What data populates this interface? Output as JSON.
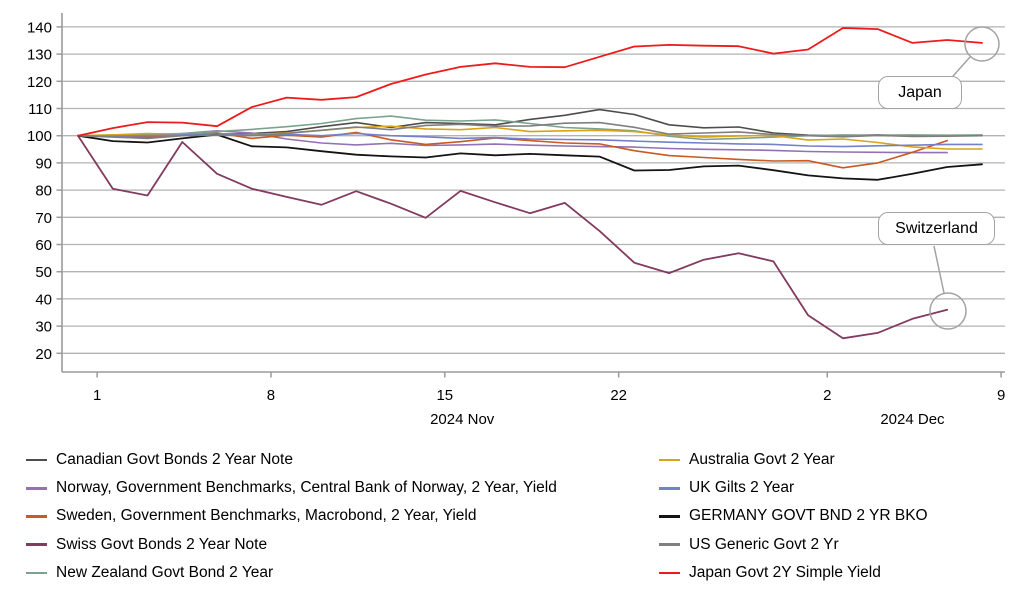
{
  "chart_data": {
    "type": "line",
    "title": "",
    "description": "2-year government bond yields, indexed to 100, business days Oct 31 - Dec 6 2024",
    "grid": true,
    "y_axis": {
      "min": 20,
      "max": 140,
      "step": 10,
      "tick_labels": [
        "20",
        "30",
        "40",
        "50",
        "60",
        "70",
        "80",
        "90",
        "100",
        "110",
        "120",
        "130",
        "140"
      ]
    },
    "x_axis": {
      "ticks": [
        {
          "label": "1",
          "i": 0.55
        },
        {
          "label": "8",
          "i": 5.55
        },
        {
          "label": "15",
          "i": 10.55
        },
        {
          "label": "22",
          "i": 15.55
        },
        {
          "label": "2",
          "i": 21.55
        },
        {
          "label": "9",
          "i": 26.55
        }
      ],
      "month_labels": [
        {
          "label": "2024 Nov",
          "i": 11.05
        },
        {
          "label": "2024 Dec",
          "i": 24.0
        }
      ]
    },
    "series": [
      {
        "key": "canada",
        "name": "Canadian Govt Bonds 2 Year Note",
        "color": "#4d4d4d",
        "width": 1.6,
        "legend_column": "left",
        "values": [
          100,
          100,
          99.2,
          100.2,
          100.5,
          100.8,
          101.5,
          103.3,
          104.8,
          103,
          104.8,
          104.5,
          104,
          106,
          107.5,
          109.6,
          107.8,
          104,
          102.9,
          103.2,
          101,
          100.2,
          100,
          100.3,
          99.9,
          100,
          100.2
        ]
      },
      {
        "key": "norway",
        "name": "Norway, Government Benchmarks, Central Bank of Norway, 2 Year, Yield",
        "color": "#9272b4",
        "width": 1.6,
        "legend_column": "left",
        "values": [
          100,
          100.2,
          100,
          100.8,
          101.8,
          101,
          98.8,
          97.3,
          96.6,
          97.2,
          96.4,
          96.6,
          96.9,
          96.5,
          96.2,
          96,
          95.8,
          95.3,
          95,
          94.8,
          94.6,
          94.2,
          94,
          93.9,
          93.8,
          93.8
        ]
      },
      {
        "key": "sweden",
        "name": "Sweden, Government Benchmarks, Macrobond, 2 Year, Yield",
        "color": "#c85a22",
        "width": 1.6,
        "legend_column": "left",
        "values": [
          100,
          99.8,
          99.5,
          100.2,
          101,
          99,
          100.2,
          99.5,
          101.2,
          98.5,
          96.8,
          97.8,
          99.2,
          98.2,
          97.3,
          97,
          94.5,
          92.7,
          92,
          91.3,
          90.7,
          90.8,
          88.2,
          90,
          93.9,
          98.2
        ]
      },
      {
        "key": "swiss",
        "name": "Swiss Govt Bonds 2 Year Note",
        "color": "#833a60",
        "width": 1.8,
        "legend_column": "left",
        "values": [
          100,
          80.5,
          78,
          97.7,
          86,
          80.5,
          77.5,
          74.6,
          79.6,
          75,
          69.8,
          79.7,
          75.5,
          71.5,
          75.3,
          65,
          53.3,
          49.5,
          54.4,
          56.8,
          53.8,
          34,
          25.5,
          27.5,
          32.7,
          36
        ]
      },
      {
        "key": "new_zealand",
        "name": "New Zealand Govt Bond 2 Year",
        "color": "#7aa28e",
        "width": 1.6,
        "legend_column": "left",
        "values": [
          100,
          100.3,
          100.5,
          100.8,
          101.5,
          102.3,
          103.3,
          104.5,
          106.3,
          107.2,
          105.7,
          105.4,
          105.8,
          104.5,
          103,
          102.5,
          101.8,
          99.8,
          98.6,
          99,
          99.5,
          100,
          100.3,
          100.2,
          100.3,
          100.2,
          100.3
        ]
      },
      {
        "key": "australia",
        "name": "Australia Govt 2 Year",
        "color": "#d9a318",
        "width": 1.6,
        "legend_column": "right",
        "values": [
          100,
          100.3,
          100.8,
          100.5,
          100.6,
          100.4,
          101,
          102,
          103,
          103.5,
          102.5,
          102.2,
          103,
          101.5,
          101.8,
          102,
          101.5,
          100.3,
          99.5,
          99.9,
          100.1,
          98.4,
          98.8,
          97.5,
          95.9,
          95.1,
          95.1
        ]
      },
      {
        "key": "uk",
        "name": "UK Gilts 2 Year",
        "color": "#7480c9",
        "width": 1.6,
        "legend_column": "right",
        "values": [
          100,
          99.8,
          100,
          100.3,
          100.8,
          100.2,
          100.5,
          100,
          100.8,
          100,
          99.6,
          99,
          99.3,
          98.8,
          98.6,
          98.5,
          98,
          97.6,
          97.3,
          97,
          96.8,
          96.2,
          96,
          96.3,
          96.5,
          96.8,
          96.8
        ]
      },
      {
        "key": "germany",
        "name": "GERMANY GOVT BND 2 YR BKO",
        "color": "#141414",
        "width": 1.8,
        "legend_column": "right",
        "values": [
          100,
          98,
          97.5,
          99,
          100.4,
          96.1,
          95.7,
          94.3,
          93,
          92.4,
          92,
          93.5,
          92.8,
          93.3,
          92.8,
          92.3,
          87.2,
          87.4,
          88.7,
          89,
          87.3,
          85.4,
          84.3,
          83.8,
          86,
          88.5,
          89.5
        ]
      },
      {
        "key": "us",
        "name": "US Generic Govt 2 Yr",
        "color": "#7f7f7f",
        "width": 1.6,
        "legend_column": "right",
        "values": [
          100,
          99.5,
          99,
          100,
          100.3,
          100,
          100.8,
          102,
          103.2,
          102.2,
          103.8,
          104.2,
          103.5,
          103.6,
          104.6,
          104.8,
          103.1,
          100.6,
          101,
          101.4,
          100.4,
          100,
          99.6,
          100.1,
          99.7,
          99.8,
          100
        ]
      },
      {
        "key": "japan",
        "name": "Japan Govt 2Y Simple Yield",
        "color": "#ed1b1b",
        "width": 1.8,
        "legend_column": "right",
        "values": [
          100,
          102.8,
          105,
          104.8,
          103.5,
          110.5,
          114,
          113.2,
          114.2,
          119,
          122.5,
          125.3,
          126.6,
          125.3,
          125.2,
          129,
          132.8,
          133.4,
          133.1,
          132.9,
          130.2,
          131.7,
          139.6,
          139.2,
          134.1,
          135.2,
          134.1
        ]
      }
    ],
    "annotations": [
      {
        "label": "Japan",
        "box": {
          "x": 878,
          "y": 76,
          "w": 84,
          "h": 33
        },
        "circle": {
          "cx": 982,
          "cy": 44,
          "r": 17
        },
        "connector": [
          [
            946,
            84
          ],
          [
            970,
            57
          ]
        ]
      },
      {
        "label": "Switzerland",
        "box": {
          "x": 878,
          "y": 212,
          "w": 117,
          "h": 33
        },
        "circle": {
          "cx": 948,
          "cy": 311,
          "r": 18
        },
        "connector": [
          [
            934,
            246
          ],
          [
            944,
            293
          ]
        ]
      }
    ],
    "style": {
      "gridline_color": "#b3b3b3",
      "axis_color": "#9a9a9a",
      "annotation_gray": "#a3a3a3",
      "background": "#ffffff"
    }
  }
}
